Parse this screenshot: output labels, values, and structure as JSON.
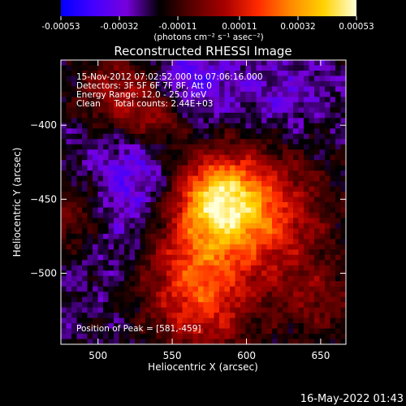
{
  "colorbar": {
    "tick_labels": [
      "-0.00053",
      "-0.00032",
      "-0.00011",
      "0.00011",
      "0.00032",
      "0.00053"
    ],
    "tick_values": [
      -0.00053,
      -0.00032,
      -0.00011,
      0.00011,
      0.00032,
      0.00053
    ],
    "range": [
      -0.00053,
      0.00053
    ],
    "units_label": "(photons cm⁻² s⁻¹ asec⁻²)",
    "colormap": [
      "#0000ff",
      "#4400ff",
      "#7700dd",
      "#000000",
      "#5a0000",
      "#a80000",
      "#ff2a00",
      "#ff8a00",
      "#ffd200",
      "#ffffd8"
    ]
  },
  "chart_data": {
    "type": "heatmap",
    "title": "Reconstructed RHESSI Image",
    "xlabel": "Heliocentric X (arcsec)",
    "ylabel": "Heliocentric Y (arcsec)",
    "xlim": [
      475,
      667
    ],
    "ylim": [
      -548,
      -356
    ],
    "xticks": [
      500,
      550,
      600,
      650
    ],
    "yticks": [
      -400,
      -450,
      -500
    ],
    "annotations": [
      "15-Nov-2012 07:02:52.000 to 07:06:16.000",
      "Detectors: 3F 5F 6F 7F 8F, Att 0",
      "Energy Range: 12.0 - 25.0 keV",
      "Clean     Total counts: 2.44E+03"
    ],
    "peak_label": "Position of Peak = [581,-459]",
    "peak_position": [
      581,
      -459
    ]
  },
  "footer": {
    "timestamp": "16-May-2022 01:43"
  }
}
